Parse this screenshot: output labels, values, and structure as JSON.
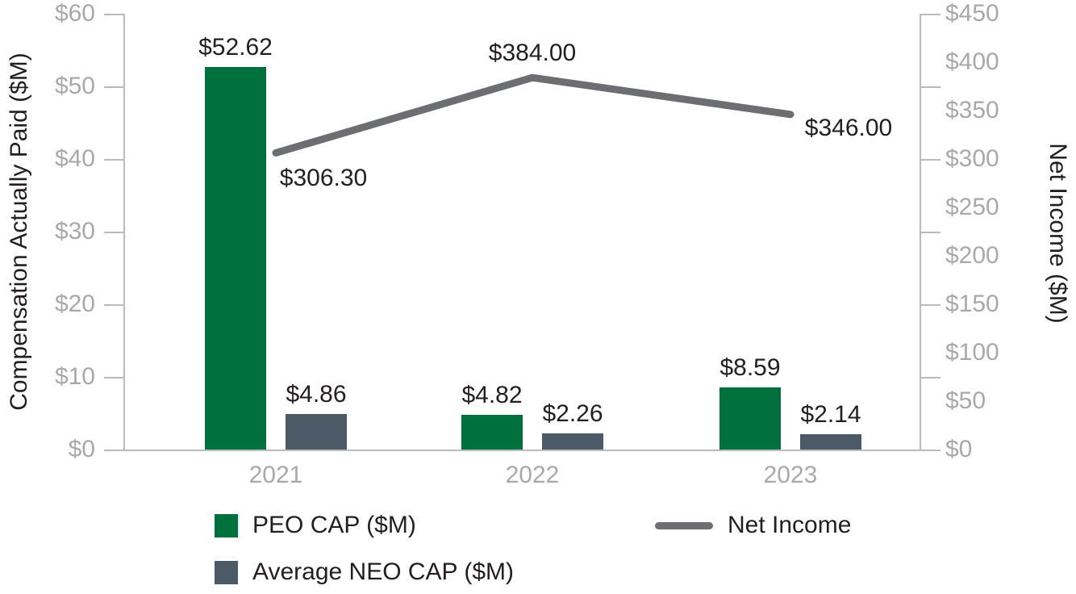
{
  "chart_data": {
    "type": "combo",
    "categories": [
      "2021",
      "2022",
      "2023"
    ],
    "series": [
      {
        "name": "PEO CAP ($M)",
        "type": "bar",
        "axis": "left",
        "color": "#00713c",
        "values": [
          52.62,
          4.82,
          8.59
        ],
        "labels": [
          "$52.62",
          "$4.82",
          "$8.59"
        ]
      },
      {
        "name": "Average NEO CAP ($M)",
        "type": "bar",
        "axis": "left",
        "color": "#4b5a66",
        "values": [
          4.86,
          2.26,
          2.14
        ],
        "labels": [
          "$4.86",
          "$2.26",
          "$2.14"
        ]
      },
      {
        "name": "Net Income",
        "type": "line",
        "axis": "right",
        "color": "#6d6e71",
        "values": [
          306.3,
          384.0,
          346.0
        ],
        "labels": [
          "$306.30",
          "$384.00",
          "$346.00"
        ],
        "label_offsets": [
          [
            59,
            32
          ],
          [
            0,
            -30
          ],
          [
            72,
            17
          ]
        ]
      }
    ],
    "left_axis": {
      "title": "Compensation Actually Paid ($M)",
      "min": 0,
      "max": 60,
      "step": 10,
      "tick_labels": [
        "$0",
        "$10",
        "$20",
        "$30",
        "$40",
        "$50",
        "$60"
      ]
    },
    "right_axis": {
      "title": "Net Income ($M)",
      "min": 0,
      "max": 450,
      "label_step": 50,
      "divisions": 6,
      "tick_labels": [
        "$0",
        "$50",
        "$100",
        "$150",
        "$200",
        "$250",
        "$300",
        "$350",
        "$400",
        "$450"
      ]
    },
    "legend_position": "bottom",
    "grid": "off",
    "colors": {
      "axis_line": "#b9bbbd",
      "tick_text": "#a7a9ac",
      "data_label_text": "#231f20"
    }
  }
}
